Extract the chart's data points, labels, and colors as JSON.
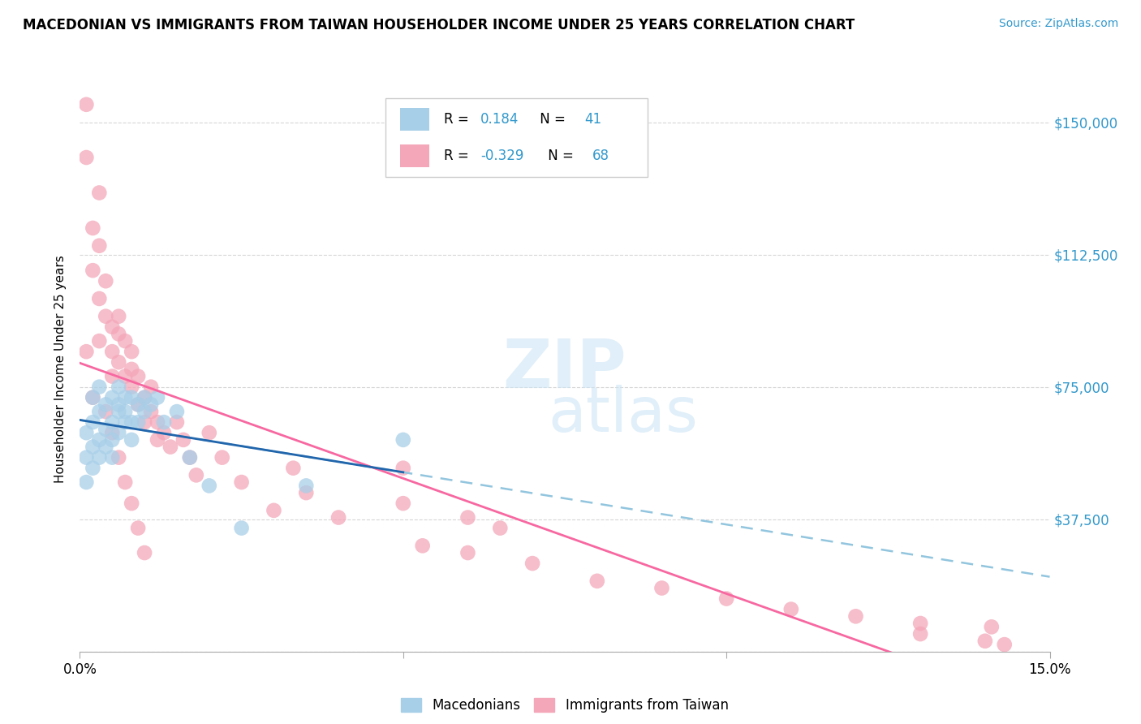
{
  "title": "MACEDONIAN VS IMMIGRANTS FROM TAIWAN HOUSEHOLDER INCOME UNDER 25 YEARS CORRELATION CHART",
  "source": "Source: ZipAtlas.com",
  "ylabel": "Householder Income Under 25 years",
  "xlim": [
    0.0,
    0.15
  ],
  "ylim": [
    0,
    160000
  ],
  "yticks": [
    0,
    37500,
    75000,
    112500,
    150000
  ],
  "ytick_labels": [
    "",
    "$37,500",
    "$75,000",
    "$112,500",
    "$150,000"
  ],
  "xticks": [
    0.0,
    0.05,
    0.1,
    0.15
  ],
  "xtick_labels": [
    "0.0%",
    "",
    "",
    "15.0%"
  ],
  "color_blue": "#a8cfe8",
  "color_pink": "#f4a7b9",
  "line_blue_solid": "#2166ac",
  "line_blue_dashed": "#92c5de",
  "line_pink_solid": "#f768a1",
  "mac_R": 0.184,
  "mac_N": 41,
  "taiwan_R": -0.329,
  "taiwan_N": 68,
  "macedonian_x": [
    0.001,
    0.001,
    0.001,
    0.002,
    0.002,
    0.002,
    0.002,
    0.003,
    0.003,
    0.003,
    0.003,
    0.004,
    0.004,
    0.004,
    0.005,
    0.005,
    0.005,
    0.005,
    0.006,
    0.006,
    0.006,
    0.006,
    0.007,
    0.007,
    0.007,
    0.008,
    0.008,
    0.008,
    0.009,
    0.009,
    0.01,
    0.01,
    0.011,
    0.012,
    0.013,
    0.015,
    0.017,
    0.02,
    0.025,
    0.035,
    0.05
  ],
  "macedonian_y": [
    55000,
    48000,
    62000,
    52000,
    58000,
    65000,
    72000,
    60000,
    55000,
    68000,
    75000,
    63000,
    58000,
    70000,
    65000,
    72000,
    55000,
    60000,
    68000,
    75000,
    62000,
    70000,
    65000,
    72000,
    68000,
    65000,
    72000,
    60000,
    65000,
    70000,
    68000,
    72000,
    70000,
    72000,
    65000,
    68000,
    55000,
    47000,
    35000,
    47000,
    60000
  ],
  "taiwan_x": [
    0.001,
    0.001,
    0.002,
    0.002,
    0.003,
    0.003,
    0.003,
    0.004,
    0.004,
    0.005,
    0.005,
    0.005,
    0.006,
    0.006,
    0.006,
    0.007,
    0.007,
    0.008,
    0.008,
    0.008,
    0.009,
    0.009,
    0.01,
    0.01,
    0.011,
    0.011,
    0.012,
    0.012,
    0.013,
    0.014,
    0.015,
    0.016,
    0.017,
    0.018,
    0.02,
    0.022,
    0.025,
    0.03,
    0.033,
    0.035,
    0.04,
    0.05,
    0.053,
    0.06,
    0.065,
    0.07,
    0.08,
    0.09,
    0.1,
    0.11,
    0.12,
    0.13,
    0.001,
    0.002,
    0.003,
    0.004,
    0.005,
    0.006,
    0.007,
    0.008,
    0.009,
    0.01,
    0.05,
    0.06,
    0.13,
    0.14,
    0.141,
    0.143
  ],
  "taiwan_y": [
    140000,
    155000,
    120000,
    108000,
    100000,
    115000,
    130000,
    95000,
    105000,
    85000,
    92000,
    78000,
    90000,
    82000,
    95000,
    88000,
    78000,
    85000,
    75000,
    80000,
    70000,
    78000,
    72000,
    65000,
    68000,
    75000,
    65000,
    60000,
    62000,
    58000,
    65000,
    60000,
    55000,
    50000,
    62000,
    55000,
    48000,
    40000,
    52000,
    45000,
    38000,
    42000,
    30000,
    28000,
    35000,
    25000,
    20000,
    18000,
    15000,
    12000,
    10000,
    8000,
    85000,
    72000,
    88000,
    68000,
    62000,
    55000,
    48000,
    42000,
    35000,
    28000,
    52000,
    38000,
    5000,
    3000,
    7000,
    2000
  ]
}
